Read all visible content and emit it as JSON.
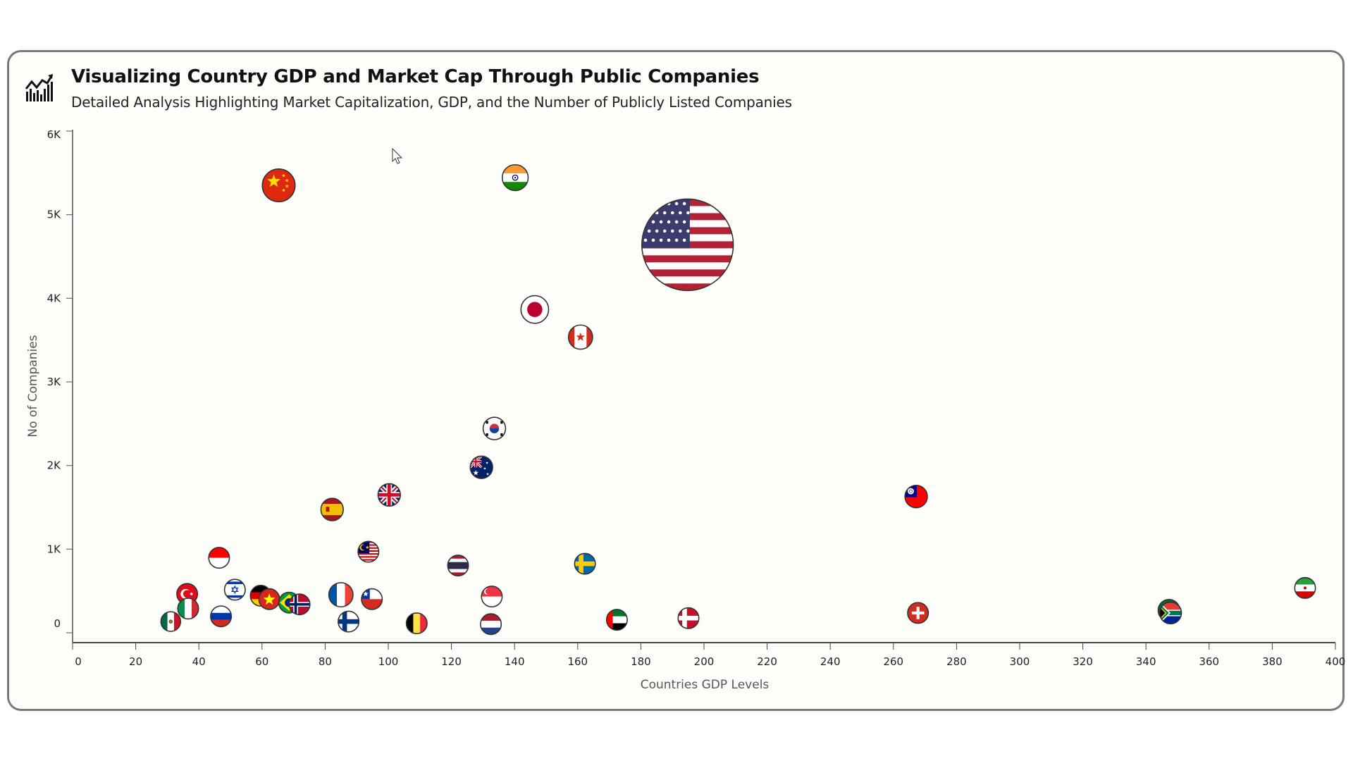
{
  "header": {
    "title": "Visualizing Country GDP and Market Cap Through Public Companies",
    "subtitle": "Detailed Analysis Highlighting Market Capitalization, GDP, and the Number of Publicly Listed Companies",
    "icon": "chart-growth-icon"
  },
  "chart_data": {
    "type": "scatter",
    "variant": "bubble",
    "title": "Visualizing Country GDP and Market Cap Through Public Companies",
    "subtitle": "Detailed Analysis Highlighting Market Capitalization, GDP, and the Number of Publicly Listed Companies",
    "xlabel": "Countries GDP Levels",
    "ylabel": "No of Companies",
    "xlim": [
      0,
      400
    ],
    "ylim": [
      -120,
      6000
    ],
    "x_ticks": [
      "0",
      "20",
      "40",
      "60",
      "80",
      "100",
      "120",
      "140",
      "160",
      "180",
      "200",
      "220",
      "240",
      "260",
      "280",
      "300",
      "320",
      "340",
      "360",
      "380",
      "400"
    ],
    "y_ticks": [
      {
        "value": 0,
        "label": "0"
      },
      {
        "value": 1000,
        "label": "1K"
      },
      {
        "value": 2000,
        "label": "2K"
      },
      {
        "value": 3000,
        "label": "3K"
      },
      {
        "value": 4000,
        "label": "4K"
      },
      {
        "value": 5000,
        "label": "5K"
      },
      {
        "value": 6000,
        "label": "6K"
      }
    ],
    "grid": false,
    "legend": "none",
    "marker": "country-flag",
    "points": [
      {
        "country": "China",
        "x": 65.3,
        "y": 5350,
        "size": 2.5
      },
      {
        "country": "India",
        "x": 140.2,
        "y": 5443,
        "size": 1.56
      },
      {
        "country": "United States",
        "x": 194.8,
        "y": 4640,
        "size": 19.5
      },
      {
        "country": "Japan",
        "x": 146.4,
        "y": 3866,
        "size": 1.78
      },
      {
        "country": "Canada",
        "x": 160.9,
        "y": 3536,
        "size": 1.36
      },
      {
        "country": "South Korea",
        "x": 133.6,
        "y": 2443,
        "size": 1.17
      },
      {
        "country": "Australia",
        "x": 129.5,
        "y": 1979,
        "size": 1.17
      },
      {
        "country": "United Kingdom",
        "x": 100.3,
        "y": 1649,
        "size": 1.17
      },
      {
        "country": "Spain",
        "x": 82.2,
        "y": 1474,
        "size": 1.17
      },
      {
        "country": "Taiwan",
        "x": 267.2,
        "y": 1629,
        "size": 1.17
      },
      {
        "country": "Indonesia",
        "x": 46.4,
        "y": 897,
        "size": 1
      },
      {
        "country": "Malaysia",
        "x": 93.7,
        "y": 969,
        "size": 1
      },
      {
        "country": "Thailand",
        "x": 122.1,
        "y": 804,
        "size": 1
      },
      {
        "country": "Sweden",
        "x": 162.3,
        "y": 825,
        "size": 1
      },
      {
        "country": "Turkey",
        "x": 36.3,
        "y": 464,
        "size": 1
      },
      {
        "country": "Israel",
        "x": 51.4,
        "y": 515,
        "size": 1
      },
      {
        "country": "Italy",
        "x": 36.6,
        "y": 289,
        "size": 1
      },
      {
        "country": "Mexico",
        "x": 31.1,
        "y": 134,
        "size": 0.9
      },
      {
        "country": "Russia",
        "x": 47.0,
        "y": 196,
        "size": 1
      },
      {
        "country": "Germany",
        "x": 59.6,
        "y": 443,
        "size": 1
      },
      {
        "country": "Vietnam",
        "x": 62.3,
        "y": 402,
        "size": 1
      },
      {
        "country": "Brazil",
        "x": 68.6,
        "y": 361,
        "size": 1
      },
      {
        "country": "Norway",
        "x": 71.9,
        "y": 340,
        "size": 1
      },
      {
        "country": "France",
        "x": 85.0,
        "y": 454,
        "size": 1.36
      },
      {
        "country": "Chile",
        "x": 94.8,
        "y": 402,
        "size": 1
      },
      {
        "country": "Finland",
        "x": 87.4,
        "y": 134,
        "size": 1
      },
      {
        "country": "Belgium",
        "x": 109.0,
        "y": 113,
        "size": 1
      },
      {
        "country": "Netherlands",
        "x": 132.5,
        "y": 103,
        "size": 1
      },
      {
        "country": "Singapore",
        "x": 132.8,
        "y": 433,
        "size": 1
      },
      {
        "country": "United Arab Emirates",
        "x": 172.4,
        "y": 155,
        "size": 1
      },
      {
        "country": "Denmark",
        "x": 195.1,
        "y": 175,
        "size": 1
      },
      {
        "country": "Switzerland",
        "x": 267.8,
        "y": 237,
        "size": 1
      },
      {
        "country": "Saudi Arabia",
        "x": 347.3,
        "y": 268,
        "size": 1.1
      },
      {
        "country": "South Africa",
        "x": 347.8,
        "y": 237,
        "size": 1.1
      },
      {
        "country": "Iran",
        "x": 390.4,
        "y": 536,
        "size": 1
      }
    ]
  }
}
